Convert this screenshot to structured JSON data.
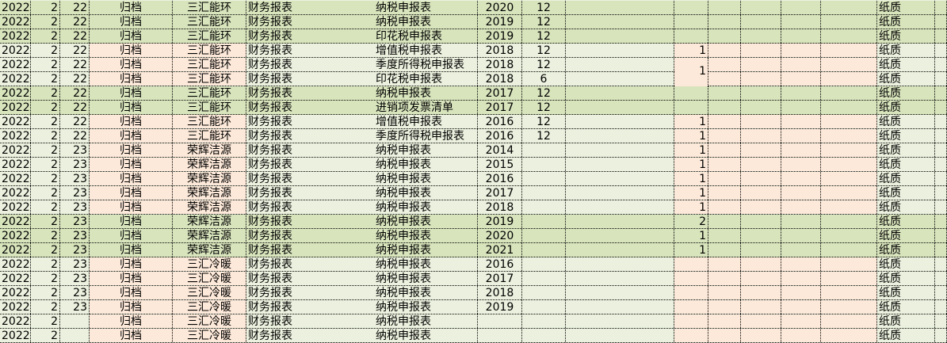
{
  "colors": {
    "green": "#d8e4bc",
    "light": "#ebf1de",
    "pink": "#fde9d9"
  },
  "rows": [
    {
      "year": "2022",
      "month": "2",
      "day": "22",
      "status": "归档",
      "company": "三汇能环",
      "category": "财务报表",
      "document": "纳税申报表",
      "doc_year": "2020",
      "months": "12",
      "count": "",
      "medium": "纸质",
      "style": "green"
    },
    {
      "year": "2022",
      "month": "2",
      "day": "22",
      "status": "归档",
      "company": "三汇能环",
      "category": "财务报表",
      "document": "纳税申报表",
      "doc_year": "2019",
      "months": "12",
      "count": "",
      "medium": "纸质",
      "style": "green"
    },
    {
      "year": "2022",
      "month": "2",
      "day": "22",
      "status": "归档",
      "company": "三汇能环",
      "category": "财务报表",
      "document": "印花税申报表",
      "doc_year": "2019",
      "months": "12",
      "count": "",
      "medium": "纸质",
      "style": "green"
    },
    {
      "year": "2022",
      "month": "2",
      "day": "22",
      "status": "归档",
      "company": "三汇能环",
      "category": "财务报表",
      "document": "增值税申报表",
      "doc_year": "2018",
      "months": "12",
      "count": "1",
      "medium": "纸质",
      "style": "light"
    },
    {
      "year": "2022",
      "month": "2",
      "day": "22",
      "status": "归档",
      "company": "三汇能环",
      "category": "财务报表",
      "document": "季度所得税申报表",
      "doc_year": "2018",
      "months": "12",
      "count": "1",
      "medium": "纸质",
      "style": "light",
      "merged_down": true
    },
    {
      "year": "2022",
      "month": "2",
      "day": "22",
      "status": "归档",
      "company": "三汇能环",
      "category": "财务报表",
      "document": "印花税申报表",
      "doc_year": "2018",
      "months": "6",
      "count": "",
      "medium": "纸质",
      "style": "light"
    },
    {
      "year": "2022",
      "month": "2",
      "day": "22",
      "status": "归档",
      "company": "三汇能环",
      "category": "财务报表",
      "document": "纳税申报表",
      "doc_year": "2017",
      "months": "12",
      "count": "",
      "medium": "纸质",
      "style": "green"
    },
    {
      "year": "2022",
      "month": "2",
      "day": "22",
      "status": "归档",
      "company": "三汇能环",
      "category": "财务报表",
      "document": "进销项发票清单",
      "doc_year": "2017",
      "months": "12",
      "count": "",
      "medium": "纸质",
      "style": "green"
    },
    {
      "year": "2022",
      "month": "2",
      "day": "22",
      "status": "归档",
      "company": "三汇能环",
      "category": "财务报表",
      "document": "增值税申报表",
      "doc_year": "2016",
      "months": "12",
      "count": "1",
      "medium": "纸质",
      "style": "light"
    },
    {
      "year": "2022",
      "month": "2",
      "day": "22",
      "status": "归档",
      "company": "三汇能环",
      "category": "财务报表",
      "document": "季度所得税申报表",
      "doc_year": "2016",
      "months": "12",
      "count": "1",
      "medium": "纸质",
      "style": "light"
    },
    {
      "year": "2022",
      "month": "2",
      "day": "23",
      "status": "归档",
      "company": "荣辉洁源",
      "category": "财务报表",
      "document": "纳税申报表",
      "doc_year": "2014",
      "months": "",
      "count": "1",
      "medium": "纸质",
      "style": "light"
    },
    {
      "year": "2022",
      "month": "2",
      "day": "23",
      "status": "归档",
      "company": "荣辉洁源",
      "category": "财务报表",
      "document": "纳税申报表",
      "doc_year": "2015",
      "months": "",
      "count": "1",
      "medium": "纸质",
      "style": "light"
    },
    {
      "year": "2022",
      "month": "2",
      "day": "23",
      "status": "归档",
      "company": "荣辉洁源",
      "category": "财务报表",
      "document": "纳税申报表",
      "doc_year": "2016",
      "months": "",
      "count": "1",
      "medium": "纸质",
      "style": "light"
    },
    {
      "year": "2022",
      "month": "2",
      "day": "23",
      "status": "归档",
      "company": "荣辉洁源",
      "category": "财务报表",
      "document": "纳税申报表",
      "doc_year": "2017",
      "months": "",
      "count": "1",
      "medium": "纸质",
      "style": "light"
    },
    {
      "year": "2022",
      "month": "2",
      "day": "23",
      "status": "归档",
      "company": "荣辉洁源",
      "category": "财务报表",
      "document": "纳税申报表",
      "doc_year": "2018",
      "months": "",
      "count": "1",
      "medium": "纸质",
      "style": "light"
    },
    {
      "year": "2022",
      "month": "2",
      "day": "23",
      "status": "归档",
      "company": "荣辉洁源",
      "category": "财务报表",
      "document": "纳税申报表",
      "doc_year": "2019",
      "months": "",
      "count": "2",
      "medium": "纸质",
      "style": "green"
    },
    {
      "year": "2022",
      "month": "2",
      "day": "23",
      "status": "归档",
      "company": "荣辉洁源",
      "category": "财务报表",
      "document": "纳税申报表",
      "doc_year": "2020",
      "months": "",
      "count": "1",
      "medium": "纸质",
      "style": "green"
    },
    {
      "year": "2022",
      "month": "2",
      "day": "23",
      "status": "归档",
      "company": "荣辉洁源",
      "category": "财务报表",
      "document": "纳税申报表",
      "doc_year": "2021",
      "months": "",
      "count": "1",
      "medium": "纸质",
      "style": "green"
    },
    {
      "year": "2022",
      "month": "2",
      "day": "23",
      "status": "归档",
      "company": "三汇冷暖",
      "category": "财务报表",
      "document": "纳税申报表",
      "doc_year": "2016",
      "months": "",
      "count": "",
      "medium": "纸质",
      "style": "light"
    },
    {
      "year": "2022",
      "month": "2",
      "day": "23",
      "status": "归档",
      "company": "三汇冷暖",
      "category": "财务报表",
      "document": "纳税申报表",
      "doc_year": "2017",
      "months": "",
      "count": "",
      "medium": "纸质",
      "style": "light"
    },
    {
      "year": "2022",
      "month": "2",
      "day": "23",
      "status": "归档",
      "company": "三汇冷暖",
      "category": "财务报表",
      "document": "纳税申报表",
      "doc_year": "2018",
      "months": "",
      "count": "",
      "medium": "纸质",
      "style": "light"
    },
    {
      "year": "2022",
      "month": "2",
      "day": "23",
      "status": "归档",
      "company": "三汇冷暖",
      "category": "财务报表",
      "document": "纳税申报表",
      "doc_year": "2019",
      "months": "",
      "count": "",
      "medium": "纸质",
      "style": "light"
    },
    {
      "year": "2022",
      "month": "2",
      "day": "",
      "status": "归档",
      "company": "三汇冷暖",
      "category": "财务报表",
      "document": "纳税申报表",
      "doc_year": "",
      "months": "",
      "count": "",
      "medium": "纸质",
      "style": "light"
    },
    {
      "year": "2022",
      "month": "2",
      "day": "",
      "status": "归档",
      "company": "三汇冷暖",
      "category": "财务报表",
      "document": "纳税申报表",
      "doc_year": "",
      "months": "",
      "count": "",
      "medium": "纸质",
      "style": "light"
    }
  ]
}
